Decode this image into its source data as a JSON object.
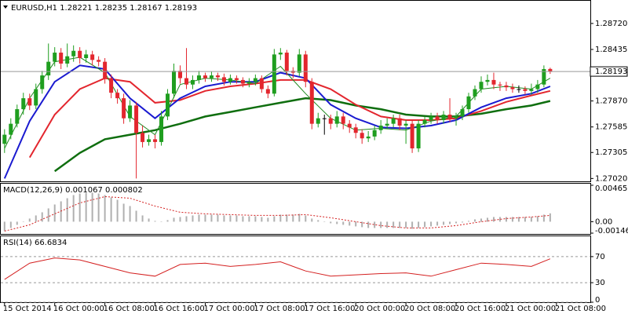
{
  "chart_data": [
    {
      "type": "candlestick",
      "title": "EURUSD,H1  1.28221 1.28235 1.28167 1.28193",
      "up_color": "#1f9e1f",
      "down_color": "#e3262e",
      "xlim": [
        -0.6,
        93.4
      ],
      "xticks": [
        {
          "value": 0,
          "label": "15 Oct 2014"
        },
        {
          "value": 8,
          "label": "16 Oct 00:00"
        },
        {
          "value": 16,
          "label": "16 Oct 08:00"
        },
        {
          "value": 24,
          "label": "16 Oct 16:00"
        },
        {
          "value": 32,
          "label": "17 Oct 00:00"
        },
        {
          "value": 40,
          "label": "17 Oct 08:00"
        },
        {
          "value": 48,
          "label": "17 Oct 16:00"
        },
        {
          "value": 56,
          "label": "20 Oct 00:00"
        },
        {
          "value": 64,
          "label": "20 Oct 08:00"
        },
        {
          "value": 72,
          "label": "20 Oct 16:00"
        },
        {
          "value": 80,
          "label": "21 Oct 00:00"
        },
        {
          "value": 88,
          "label": "21 Oct 08:00"
        }
      ],
      "ylim": [
        1.2698,
        1.2896
      ],
      "yticks": [
        {
          "value": 1.2872,
          "label": "1.28720"
        },
        1.28435,
        {
          "value": 1.2787,
          "label": "1.27870"
        },
        1.27585,
        1.27305,
        {
          "value": 1.2702,
          "label": "1.27020"
        }
      ],
      "ohlc": [
        [
          1.274,
          1.2756,
          1.273,
          1.275
        ],
        [
          1.275,
          1.2768,
          1.2745,
          1.2762
        ],
        [
          1.2762,
          1.2783,
          1.2758,
          1.2778
        ],
        [
          1.2778,
          1.2796,
          1.2772,
          1.279
        ],
        [
          1.279,
          1.2795,
          1.2777,
          1.2782
        ],
        [
          1.2782,
          1.2806,
          1.2778,
          1.28
        ],
        [
          1.28,
          1.282,
          1.2795,
          1.2815
        ],
        [
          1.2815,
          1.285,
          1.281,
          1.283
        ],
        [
          1.283,
          1.2846,
          1.2825,
          1.284
        ],
        [
          1.284,
          1.2845,
          1.2822,
          1.2828
        ],
        [
          1.2828,
          1.285,
          1.2824,
          1.2836
        ],
        [
          1.2836,
          1.2848,
          1.283,
          1.2842
        ],
        [
          1.2842,
          1.2846,
          1.2828,
          1.2834
        ],
        [
          1.2834,
          1.2843,
          1.2829,
          1.2838
        ],
        [
          1.2838,
          1.2842,
          1.2826,
          1.2832
        ],
        [
          1.2832,
          1.2836,
          1.2825,
          1.283
        ],
        [
          1.283,
          1.2834,
          1.2806,
          1.2812
        ],
        [
          1.2812,
          1.2816,
          1.279,
          1.2796
        ],
        [
          1.2796,
          1.28,
          1.2784,
          1.279
        ],
        [
          1.279,
          1.2795,
          1.2762,
          1.2768
        ],
        [
          1.2768,
          1.2788,
          1.2764,
          1.2782
        ],
        [
          1.2782,
          1.2786,
          1.2702,
          1.2752
        ],
        [
          1.2752,
          1.276,
          1.2736,
          1.2742
        ],
        [
          1.2742,
          1.275,
          1.2738,
          1.2745
        ],
        [
          1.2745,
          1.275,
          1.2735,
          1.2742
        ],
        [
          1.2742,
          1.2776,
          1.2738,
          1.277
        ],
        [
          1.277,
          1.28,
          1.2766,
          1.2795
        ],
        [
          1.2795,
          1.2828,
          1.279,
          1.282
        ],
        [
          1.282,
          1.2826,
          1.2806,
          1.2812
        ],
        [
          1.2812,
          1.2845,
          1.28,
          1.2805
        ],
        [
          1.2805,
          1.2815,
          1.28,
          1.281
        ],
        [
          1.281,
          1.282,
          1.2806,
          1.2815
        ],
        [
          1.2815,
          1.2818,
          1.2808,
          1.2812
        ],
        [
          1.2812,
          1.2819,
          1.2808,
          1.2815
        ],
        [
          1.2815,
          1.2818,
          1.2809,
          1.2813
        ],
        [
          1.2813,
          1.2817,
          1.2804,
          1.2808
        ],
        [
          1.2808,
          1.2816,
          1.2805,
          1.2812
        ],
        [
          1.2812,
          1.2815,
          1.2806,
          1.281
        ],
        [
          1.281,
          1.2813,
          1.2802,
          1.2806
        ],
        [
          1.2806,
          1.2812,
          1.2802,
          1.2808
        ],
        [
          1.2808,
          1.2816,
          1.2804,
          1.2812
        ],
        [
          1.2812,
          1.2815,
          1.2796,
          1.28
        ],
        [
          1.28,
          1.2804,
          1.279,
          1.2795
        ],
        [
          1.2795,
          1.2844,
          1.2792,
          1.2838
        ],
        [
          1.2838,
          1.2845,
          1.2832,
          1.284
        ],
        [
          1.284,
          1.2843,
          1.2815,
          1.282
        ],
        [
          1.282,
          1.2824,
          1.2812,
          1.2818
        ],
        [
          1.2818,
          1.2844,
          1.2814,
          1.2838
        ],
        [
          1.2838,
          1.2842,
          1.2802,
          1.2808
        ],
        [
          1.2808,
          1.2812,
          1.2756,
          1.2762
        ],
        [
          1.2762,
          1.2774,
          1.2758,
          1.2768
        ],
        [
          1.2768,
          1.2772,
          1.275,
          1.2768
        ],
        [
          1.2768,
          1.2772,
          1.2756,
          1.2762
        ],
        [
          1.2762,
          1.2776,
          1.2758,
          1.277
        ],
        [
          1.277,
          1.2774,
          1.2756,
          1.2762
        ],
        [
          1.2762,
          1.2766,
          1.2752,
          1.2758
        ],
        [
          1.2758,
          1.2762,
          1.2746,
          1.2752
        ],
        [
          1.2752,
          1.2756,
          1.274,
          1.2746
        ],
        [
          1.2746,
          1.2754,
          1.2742,
          1.2748
        ],
        [
          1.2748,
          1.276,
          1.2744,
          1.2755
        ],
        [
          1.2755,
          1.2766,
          1.2751,
          1.276
        ],
        [
          1.276,
          1.2768,
          1.2756,
          1.2762
        ],
        [
          1.2762,
          1.2772,
          1.2758,
          1.2768
        ],
        [
          1.2768,
          1.2772,
          1.2755,
          1.276
        ],
        [
          1.276,
          1.2766,
          1.274,
          1.2762
        ],
        [
          1.2762,
          1.2766,
          1.273,
          1.2735
        ],
        [
          1.2735,
          1.2766,
          1.2731,
          1.2762
        ],
        [
          1.2762,
          1.277,
          1.2758,
          1.2766
        ],
        [
          1.2766,
          1.2774,
          1.2762,
          1.277
        ],
        [
          1.277,
          1.2774,
          1.2762,
          1.2766
        ],
        [
          1.2766,
          1.2776,
          1.2762,
          1.2772
        ],
        [
          1.2772,
          1.279,
          1.2764,
          1.2768
        ],
        [
          1.2768,
          1.2774,
          1.276,
          1.277
        ],
        [
          1.277,
          1.2782,
          1.2766,
          1.2778
        ],
        [
          1.2778,
          1.2796,
          1.2774,
          1.2792
        ],
        [
          1.2792,
          1.2804,
          1.2788,
          1.28
        ],
        [
          1.28,
          1.2814,
          1.2796,
          1.2808
        ],
        [
          1.2808,
          1.2816,
          1.2804,
          1.281
        ],
        [
          1.281,
          1.2818,
          1.28,
          1.2805
        ],
        [
          1.2805,
          1.2808,
          1.2798,
          1.2804
        ],
        [
          1.2804,
          1.2808,
          1.2798,
          1.2802
        ],
        [
          1.2802,
          1.2806,
          1.2796,
          1.28
        ],
        [
          1.28,
          1.2804,
          1.2796,
          1.28
        ],
        [
          1.28,
          1.2803,
          1.2794,
          1.2798
        ],
        [
          1.2798,
          1.2806,
          1.2794,
          1.28
        ],
        [
          1.28,
          1.281,
          1.2796,
          1.2805
        ],
        [
          1.2805,
          1.2826,
          1.2802,
          1.2822
        ],
        [
          1.28221,
          1.28235,
          1.28167,
          1.28193
        ]
      ],
      "series": [
        {
          "color": "#0f6e0f",
          "width": 2.5,
          "x": [
            0,
            4,
            8,
            12,
            16,
            20,
            24,
            28,
            32,
            36,
            40,
            44,
            48,
            52,
            56,
            60,
            64,
            68,
            72,
            76,
            80,
            84,
            87
          ],
          "values": [
            null,
            null,
            1.271,
            1.273,
            1.2745,
            1.275,
            1.2755,
            1.2762,
            1.277,
            1.2775,
            1.278,
            1.2785,
            1.279,
            1.2788,
            1.2782,
            1.2778,
            1.2772,
            1.277,
            1.277,
            1.2773,
            1.2778,
            1.2782,
            1.2787
          ]
        },
        {
          "color": "#e3262e",
          "width": 2,
          "x": [
            0,
            4,
            8,
            12,
            16,
            20,
            24,
            28,
            32,
            36,
            40,
            44,
            48,
            52,
            56,
            60,
            64,
            68,
            72,
            76,
            80,
            84,
            87
          ],
          "values": [
            null,
            1.2725,
            1.2772,
            1.28,
            1.2812,
            1.2808,
            1.2785,
            1.2788,
            1.2798,
            1.2803,
            1.2806,
            1.281,
            1.281,
            1.28,
            1.2783,
            1.277,
            1.2766,
            1.2766,
            1.2768,
            1.2776,
            1.2786,
            1.2793,
            1.2798
          ]
        },
        {
          "color": "#1a1ad0",
          "width": 2,
          "x": [
            0,
            4,
            8,
            12,
            16,
            20,
            24,
            28,
            32,
            36,
            40,
            44,
            48,
            52,
            56,
            60,
            64,
            68,
            72,
            76,
            80,
            84,
            87
          ],
          "values": [
            1.2702,
            1.2765,
            1.2808,
            1.2826,
            1.2822,
            1.279,
            1.2768,
            1.279,
            1.2803,
            1.2808,
            1.2808,
            1.2818,
            1.2812,
            1.2783,
            1.2768,
            1.2758,
            1.2757,
            1.276,
            1.2766,
            1.278,
            1.279,
            1.2795,
            1.2803
          ]
        },
        {
          "color": "#1f8a1f",
          "width": 1,
          "x": [
            0,
            4,
            8,
            12,
            16,
            20,
            24,
            28,
            32,
            36,
            40,
            44,
            48,
            52,
            56,
            60,
            64,
            68,
            72,
            76,
            80,
            84,
            87
          ],
          "values": [
            1.2735,
            1.279,
            1.283,
            1.2835,
            1.2818,
            1.277,
            1.275,
            1.2805,
            1.2812,
            1.281,
            1.2806,
            1.2825,
            1.2795,
            1.2768,
            1.2755,
            1.2757,
            1.2755,
            1.2765,
            1.277,
            1.28,
            1.2803,
            1.28,
            1.2812
          ]
        }
      ]
    },
    {
      "type": "macd",
      "title": "MACD(12,26,9) 0.001067 0.000802",
      "xlim": [
        -0.6,
        93.4
      ],
      "ylim": [
        -0.001462,
        0.004653
      ],
      "yticks": [
        0.004653,
        {
          "value": 0,
          "label": "0.00"
        },
        -0.001462
      ],
      "color": "#b0b0b0",
      "values": [
        -0.0012,
        -0.0008,
        -0.0004,
        0.0,
        0.0004,
        0.0008,
        0.0012,
        0.0017,
        0.0022,
        0.0026,
        0.003,
        0.0034,
        0.0036,
        0.0037,
        0.0037,
        0.0036,
        0.0034,
        0.0031,
        0.0028,
        0.0023,
        0.002,
        0.0014,
        0.0008,
        0.0004,
        0.0001,
        0.0,
        0.0002,
        0.0005,
        0.0006,
        0.0007,
        0.0008,
        0.0009,
        0.0009,
        0.0009,
        0.0009,
        0.0008,
        0.0008,
        0.0008,
        0.0007,
        0.0007,
        0.0007,
        0.0006,
        0.0005,
        0.0007,
        0.0009,
        0.0009,
        0.0009,
        0.001,
        0.0008,
        0.0004,
        0.0002,
        0.0,
        -0.0002,
        -0.0003,
        -0.0004,
        -0.0005,
        -0.0006,
        -0.0007,
        -0.0008,
        -0.0008,
        -0.0008,
        -0.0008,
        -0.0008,
        -0.0008,
        -0.0008,
        -0.0009,
        -0.0008,
        -0.0007,
        -0.0006,
        -0.0005,
        -0.0004,
        -0.0003,
        -0.0002,
        -0.0001,
        0.0001,
        0.0003,
        0.0004,
        0.0005,
        0.0006,
        0.0006,
        0.0006,
        0.0006,
        0.0006,
        0.0006,
        0.0006,
        0.0007,
        0.0009,
        0.001067
      ],
      "signal": {
        "color": "#d42020",
        "x": [
          0,
          4,
          8,
          12,
          16,
          20,
          24,
          28,
          32,
          36,
          40,
          44,
          48,
          52,
          56,
          60,
          64,
          68,
          72,
          76,
          80,
          84,
          87
        ],
        "values": [
          -0.0012,
          -0.0004,
          0.001,
          0.0024,
          0.0032,
          0.003,
          0.002,
          0.0012,
          0.001,
          0.0009,
          0.0008,
          0.0008,
          0.0009,
          0.0005,
          0.0,
          -0.0005,
          -0.0008,
          -0.0008,
          -0.0005,
          0.0,
          0.0004,
          0.0006,
          0.000802
        ]
      }
    },
    {
      "type": "rsi",
      "title": "RSI(14) 66.6834",
      "xlim": [
        -0.6,
        93.4
      ],
      "ylim": [
        0,
        100
      ],
      "yticks": [
        70,
        30,
        0
      ],
      "color": "#d42020",
      "x": [
        0,
        4,
        8,
        12,
        16,
        20,
        24,
        28,
        32,
        36,
        40,
        44,
        48,
        52,
        56,
        60,
        64,
        68,
        72,
        76,
        80,
        84,
        87
      ],
      "values": [
        35,
        60,
        68,
        65,
        55,
        45,
        40,
        58,
        60,
        55,
        58,
        62,
        48,
        40,
        42,
        44,
        45,
        40,
        50,
        60,
        58,
        55,
        66.6834
      ]
    }
  ]
}
